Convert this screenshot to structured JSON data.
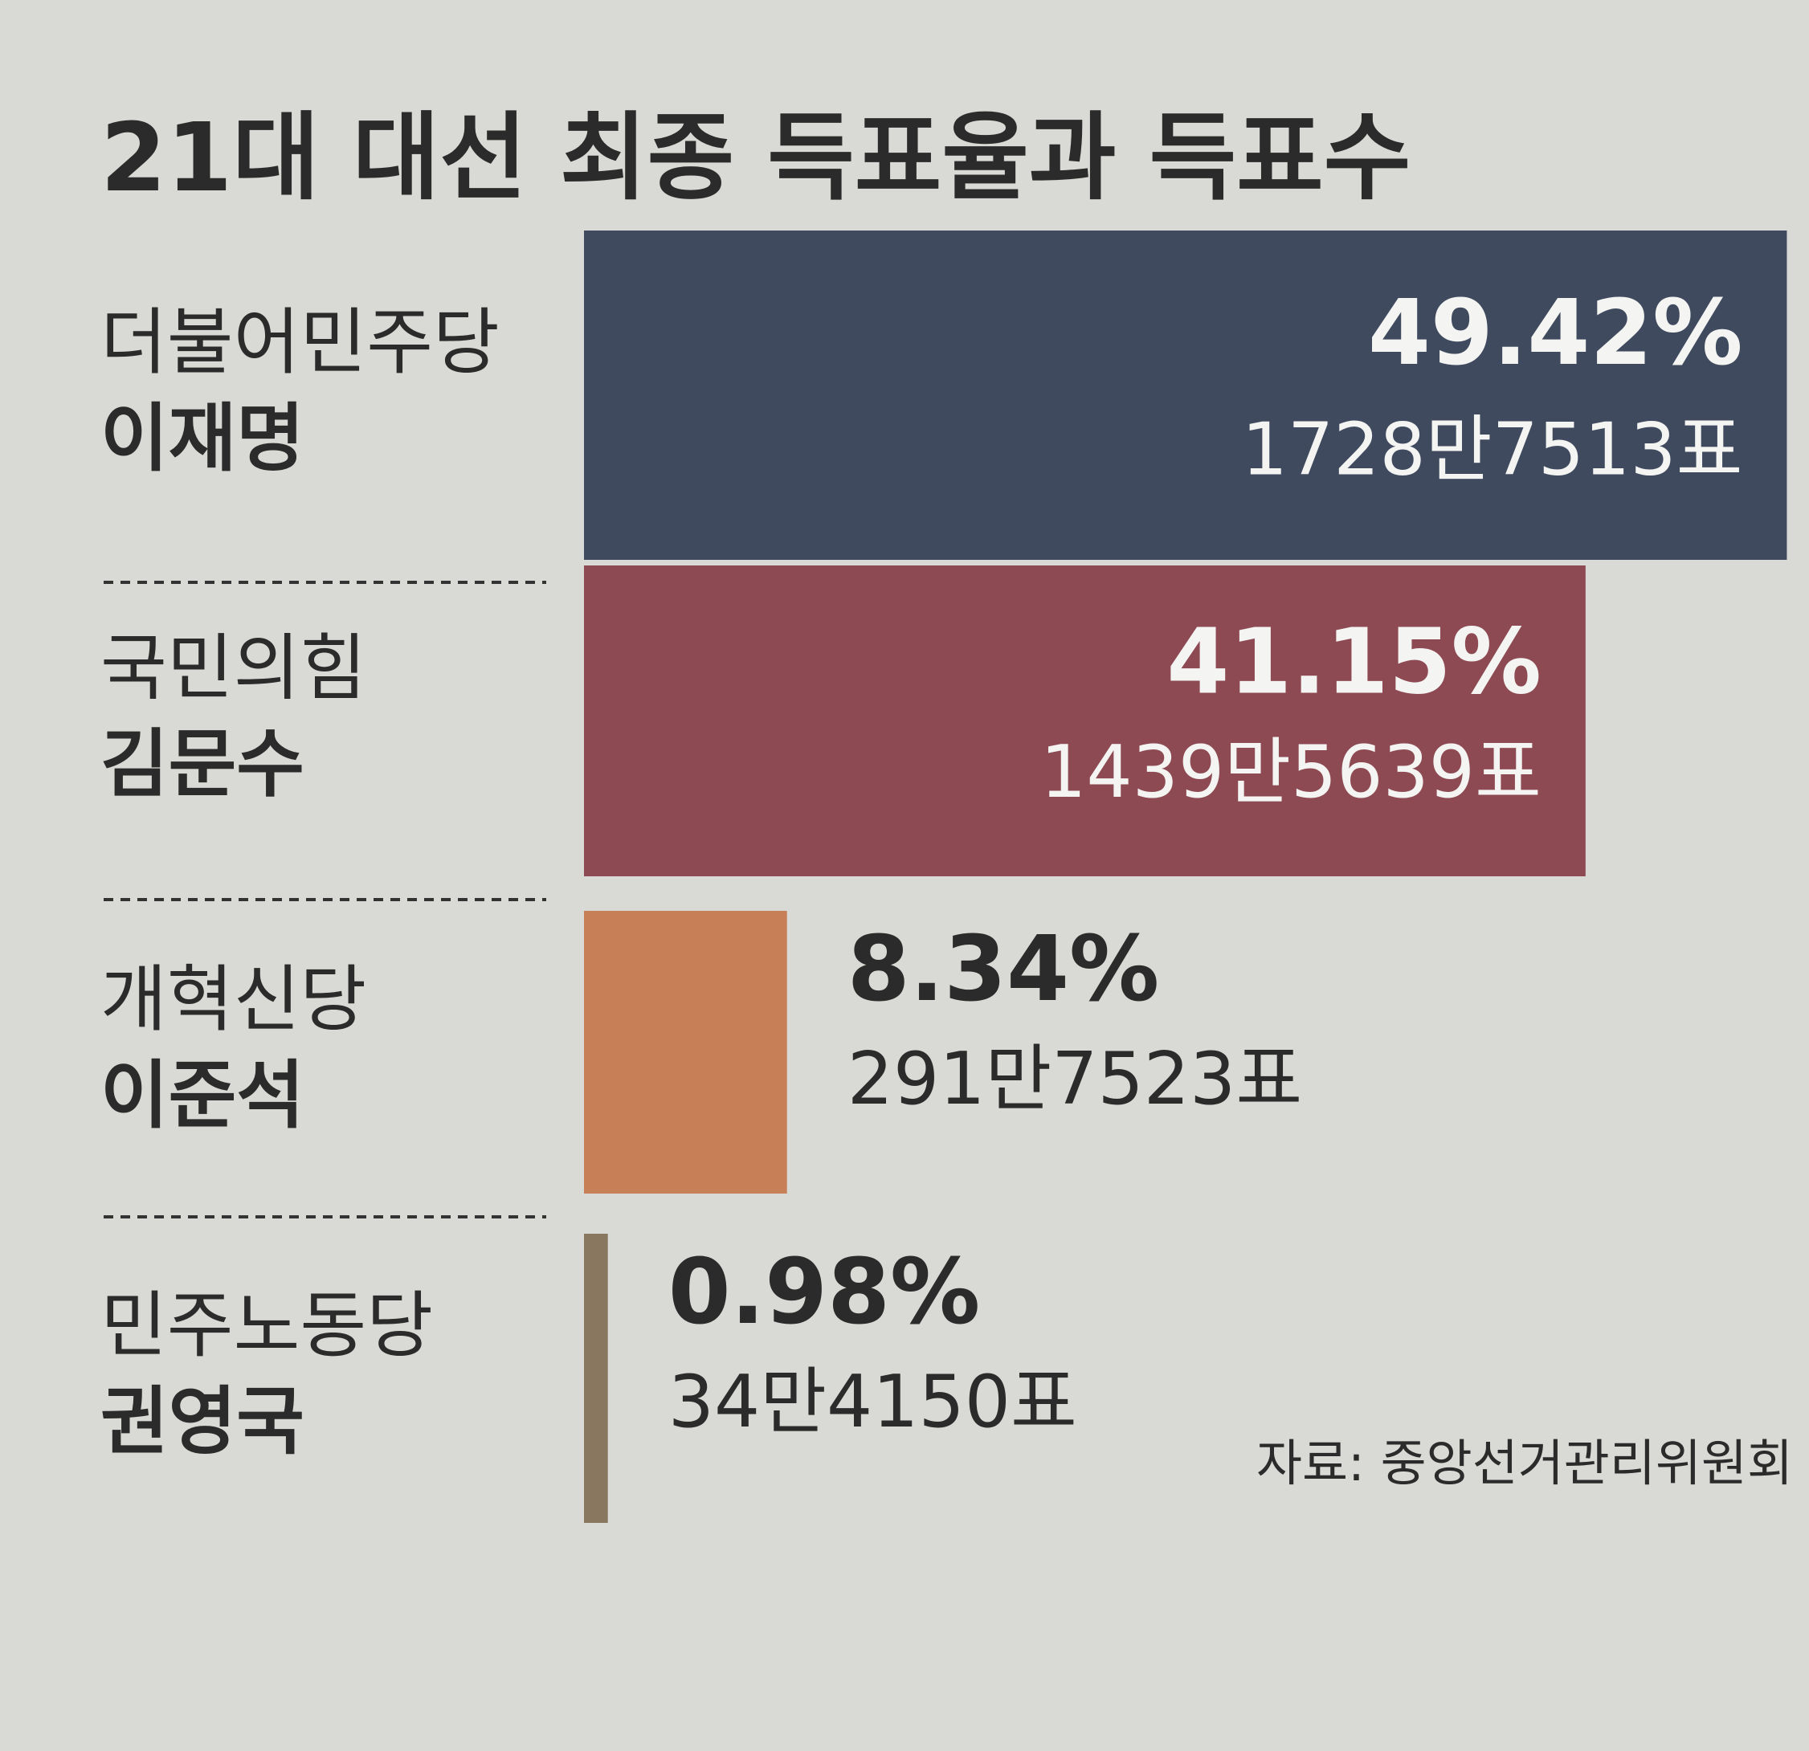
{
  "chart_data": {
    "type": "bar",
    "orientation": "horizontal",
    "title": "21대 대선 최종 득표율과 득표수",
    "parties": [
      "더불어민주당",
      "국민의힘",
      "개혁신당",
      "민주노동당"
    ],
    "categories": [
      "이재명",
      "김문수",
      "이준석",
      "권영국"
    ],
    "values": [
      49.42,
      41.15,
      8.34,
      0.98
    ],
    "value_labels": [
      "49.42%",
      "41.15%",
      "8.34%",
      "0.98%"
    ],
    "vote_labels": [
      "1728만7513표",
      "1439만5639표",
      "291만7523표",
      "34만4150표"
    ],
    "colors": [
      "#3f4a5f",
      "#8d4a53",
      "#c77f57",
      "#8a7760"
    ],
    "source": "자료: 중앙선거관리위원회"
  }
}
